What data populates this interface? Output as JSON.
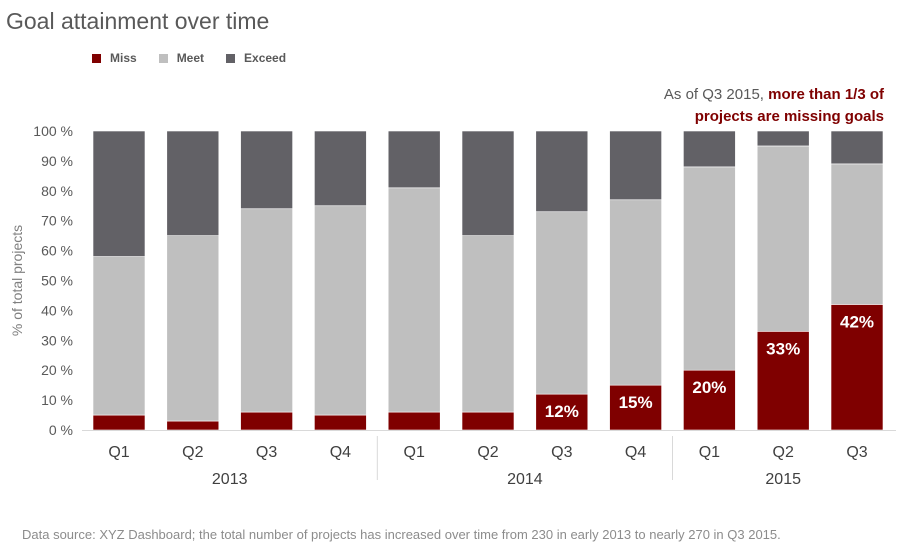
{
  "title": "Goal attainment over time",
  "legend": [
    {
      "label": "Miss",
      "color": "#7f0000"
    },
    {
      "label": "Meet",
      "color": "#bfbfbf"
    },
    {
      "label": "Exceed",
      "color": "#626166"
    }
  ],
  "annotation": {
    "prefix": "As of Q3 2015, ",
    "highlight_1": "more than 1/3 of",
    "highlight_2": "projects are missing goals"
  },
  "footnote": "Data source: XYZ Dashboard; the total number of projects has increased over time from 230 in early 2013 to nearly 270 in Q3 2015.",
  "chart_data": {
    "type": "bar",
    "stacked": true,
    "title": "Goal attainment over time",
    "ylabel": "% of total projects",
    "xlabel": "",
    "ylim": [
      0,
      100
    ],
    "yticks": [
      "0 %",
      "10 %",
      "20 %",
      "30 %",
      "40 %",
      "50 %",
      "60 %",
      "70 %",
      "80 %",
      "90 %",
      "100 %"
    ],
    "categories": [
      "Q1",
      "Q2",
      "Q3",
      "Q4",
      "Q1",
      "Q2",
      "Q3",
      "Q4",
      "Q1",
      "Q2",
      "Q3"
    ],
    "groups": [
      {
        "label": "2013",
        "count": 4
      },
      {
        "label": "2014",
        "count": 4
      },
      {
        "label": "2015",
        "count": 3
      }
    ],
    "series": [
      {
        "name": "Miss",
        "color": "#7f0000",
        "values": [
          5,
          3,
          6,
          5,
          6,
          6,
          12,
          15,
          20,
          33,
          42
        ]
      },
      {
        "name": "Meet",
        "color": "#bfbfbf",
        "values": [
          53,
          62,
          68,
          70,
          75,
          59,
          61,
          62,
          68,
          62,
          47
        ]
      },
      {
        "name": "Exceed",
        "color": "#626166",
        "values": [
          42,
          35,
          26,
          25,
          19,
          35,
          27,
          23,
          12,
          5,
          11
        ]
      }
    ],
    "data_labels": [
      "",
      "",
      "",
      "",
      "",
      "",
      "12%",
      "15%",
      "20%",
      "33%",
      "42%"
    ],
    "legend_position": "top-left",
    "grid": false
  }
}
